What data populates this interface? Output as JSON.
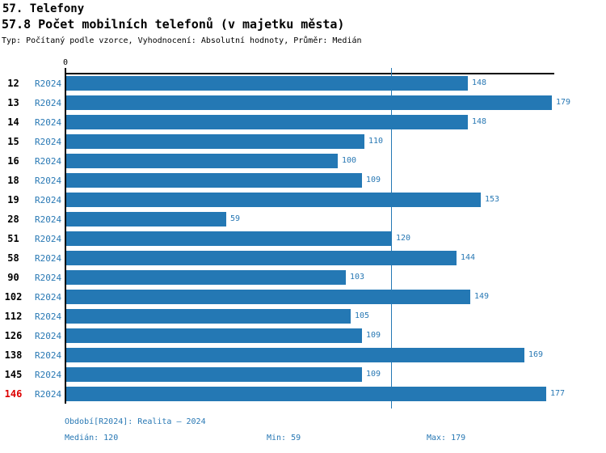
{
  "header": {
    "section_title": "57. Telefony",
    "indicator_title": "57.8 Počet mobilních telefonů (v majetku města)",
    "meta_line": "Typ: Počítaný podle vzorce, Vyhodnocení: Absolutní hodnoty, Průměr: Medián"
  },
  "chart_data": {
    "type": "bar",
    "orientation": "horizontal",
    "title": "57.8 Počet mobilních telefonů (v majetku města)",
    "period_label": "R2024",
    "categories": [
      "12",
      "13",
      "14",
      "15",
      "16",
      "18",
      "19",
      "28",
      "51",
      "58",
      "90",
      "102",
      "112",
      "126",
      "138",
      "145",
      "146"
    ],
    "values": [
      148,
      179,
      148,
      110,
      100,
      109,
      153,
      59,
      120,
      144,
      103,
      149,
      105,
      109,
      169,
      109,
      177
    ],
    "highlighted_category": "146",
    "axis_zero_label": "0",
    "xlim": [
      0,
      180
    ],
    "grid": false,
    "median_value": 120,
    "min_value": 59,
    "max_value": 179,
    "bar_color": "#2478b4",
    "median_line_color": "#2478b4",
    "highlight_color": "#dd0000",
    "label_color": "#2878b4"
  },
  "footer": {
    "period": "Období[R2024]: Realita – 2024",
    "median": "Medián: 120",
    "min": "Min: 59",
    "max": "Max: 179"
  }
}
